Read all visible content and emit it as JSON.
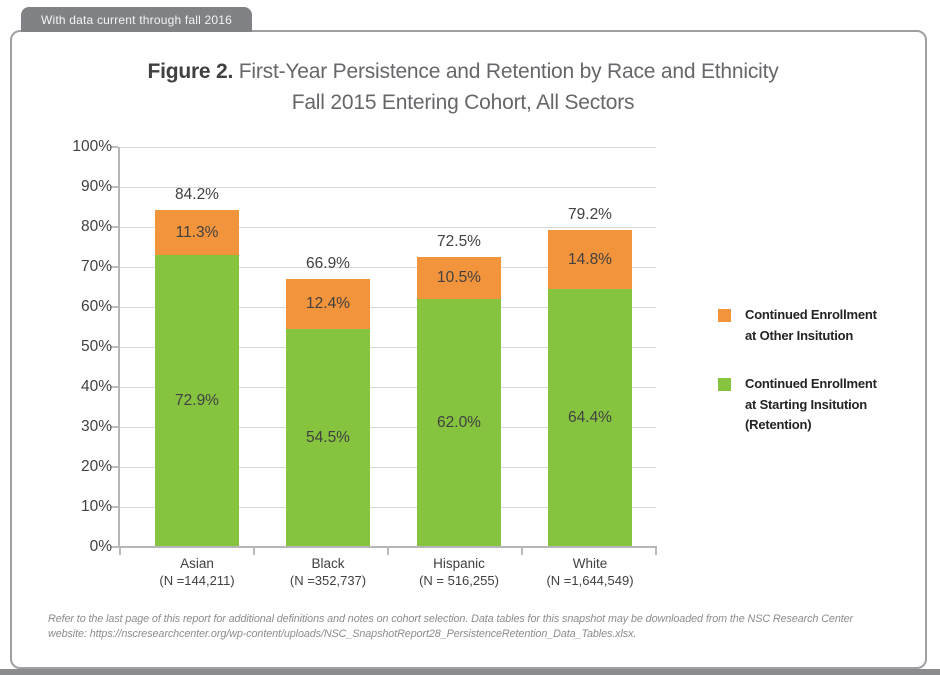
{
  "banner": {
    "label": "With data current through fall 2016"
  },
  "title": {
    "figure_label": "Figure 2.",
    "line1_rest": " First-Year Persistence and Retention by Race and Ethnicity",
    "line2": "Fall 2015 Entering Cohort, All Sectors"
  },
  "chart_data": {
    "type": "bar",
    "stacked": true,
    "title": "Figure 2. First-Year Persistence and Retention by Race and Ethnicity — Fall 2015 Entering Cohort, All Sectors",
    "categories": [
      "Asian",
      "Black",
      "Hispanic",
      "White"
    ],
    "category_sublabels": [
      "(N =144,211)",
      "(N =352,737)",
      "(N = 516,255)",
      "(N =1,644,549)"
    ],
    "series": [
      {
        "name": "Continued Enrollment at Starting Insitution (Retention)",
        "color": "#86C440",
        "values": [
          72.9,
          54.5,
          62.0,
          64.4
        ]
      },
      {
        "name": "Continued Enrollment at Other Insitution",
        "color": "#F2943B",
        "values": [
          11.3,
          12.4,
          10.5,
          14.8
        ]
      }
    ],
    "totals": [
      84.2,
      66.9,
      72.5,
      79.2
    ],
    "xlabel": "",
    "ylabel": "",
    "ylim": [
      0,
      100
    ],
    "ytick_step": 10,
    "ytick_format": "percent",
    "grid": true,
    "legend_position": "right"
  },
  "legend": {
    "items": [
      {
        "color": "#F2943B",
        "lines": [
          "Continued Enrollment",
          "at Other Insitution"
        ]
      },
      {
        "color": "#86C440",
        "lines": [
          "Continued Enrollment",
          "at Starting Insitution",
          "(Retention)"
        ]
      }
    ]
  },
  "footnote": {
    "line1": "Refer to the last page of this report for additional definitions and notes on cohort selection. Data tables for this snapshot may be downloaded from the NSC Research Center",
    "line2": "website: https://nscresearchcenter.org/wp-content/uploads/NSC_SnapshotReport28_PersistenceRetention_Data_Tables.xlsx."
  },
  "colors": {
    "orange": "#F2943B",
    "green": "#86C440",
    "tab_background": "#808285",
    "frame_border": "#9EA0A3",
    "gridline": "#D6D7D9",
    "axis": "#B4B6B8",
    "label_text": "#414042"
  }
}
